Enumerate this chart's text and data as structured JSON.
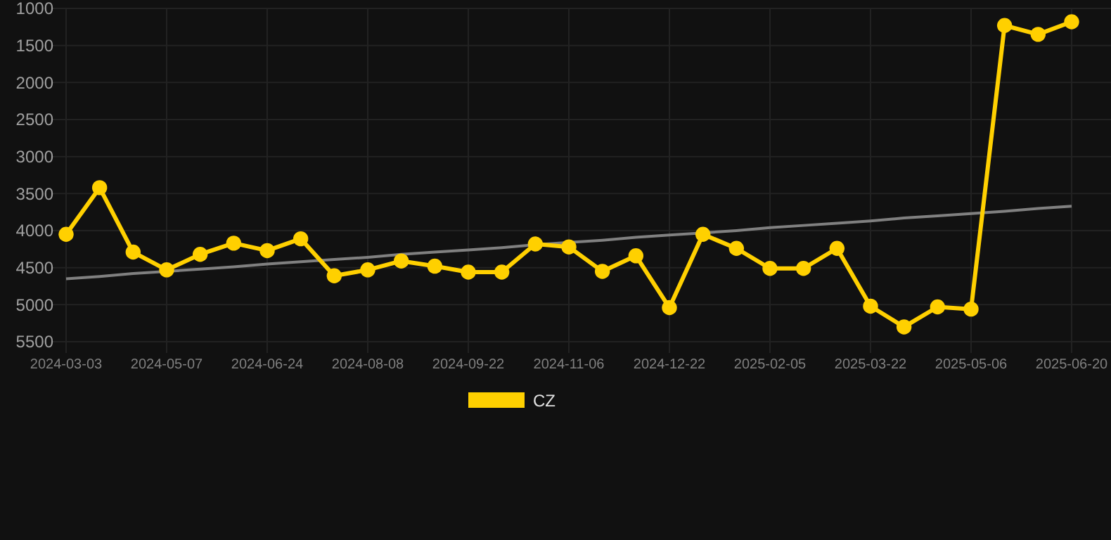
{
  "chart_data": {
    "type": "line",
    "categories": [
      "2024-03-03",
      null,
      null,
      "2024-05-07",
      null,
      null,
      "2024-06-24",
      null,
      null,
      "2024-08-08",
      null,
      null,
      "2024-09-22",
      null,
      null,
      "2024-11-06",
      null,
      null,
      "2024-12-22",
      null,
      null,
      "2025-02-05",
      null,
      null,
      "2025-03-22",
      null,
      null,
      "2025-05-06",
      null,
      null,
      "2025-06-20"
    ],
    "series": [
      {
        "name": "CZ",
        "color": "#ffd000",
        "marker": "circle",
        "values": [
          4050,
          3420,
          4290,
          4530,
          4320,
          4170,
          4270,
          4110,
          4610,
          4530,
          4410,
          4480,
          4560,
          4560,
          4180,
          4220,
          4550,
          4340,
          5040,
          4050,
          4240,
          4510,
          4510,
          4240,
          5020,
          5300,
          5030,
          5060,
          1230,
          1350,
          1180
        ]
      },
      {
        "type": "line",
        "color": "#808080",
        "marker": "none",
        "values": [
          4650,
          4620,
          4580,
          4550,
          4520,
          4490,
          4450,
          4420,
          4390,
          4360,
          4320,
          4290,
          4260,
          4230,
          4190,
          4160,
          4130,
          4090,
          4060,
          4030,
          4000,
          3960,
          3930,
          3900,
          3870,
          3830,
          3800,
          3770,
          3740,
          3700,
          3670
        ]
      }
    ],
    "ylim": [
      5500,
      1000
    ],
    "yticks": [
      1000,
      1500,
      2000,
      2500,
      3000,
      3500,
      4000,
      4500,
      5000,
      5500
    ],
    "grid": true,
    "legend": "bottom"
  }
}
